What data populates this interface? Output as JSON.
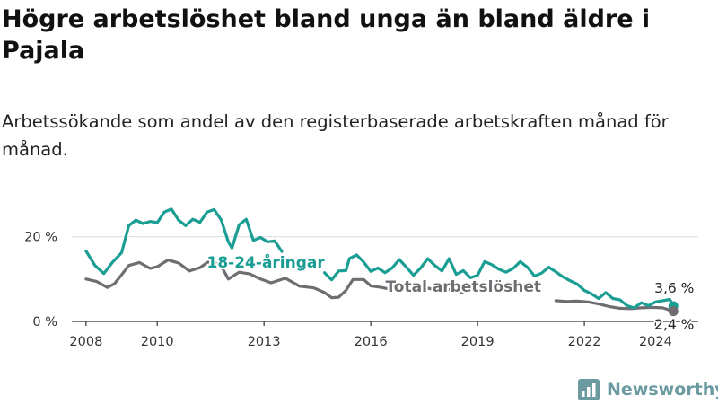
{
  "title": "Högre arbetslöshet bland unga än bland äldre i Pajala",
  "subtitle": "Arbetssökande som andel av den registerbaserade arbetskraften månad för månad.",
  "brand": {
    "name": "Newsworthy",
    "icon": "newsworthy-logo-icon",
    "color": "#6b9aa0"
  },
  "colors": {
    "youth": "#1a9e94",
    "total": "#706d72",
    "grid": "#e2e2e2",
    "axis": "#333333"
  },
  "chart_data": {
    "type": "line",
    "xlim": [
      2007.6,
      2025.2
    ],
    "ylim": [
      0,
      25
    ],
    "xticks": [
      {
        "value": 2008,
        "label": "2008"
      },
      {
        "value": 2010,
        "label": "2010"
      },
      {
        "value": 2013,
        "label": "2013"
      },
      {
        "value": 2016,
        "label": "2016"
      },
      {
        "value": 2019,
        "label": "2019"
      },
      {
        "value": 2022,
        "label": "2022"
      },
      {
        "value": 2024,
        "label": "2024"
      }
    ],
    "yticks": [
      {
        "value": 0,
        "label": "0 %"
      },
      {
        "value": 20,
        "label": "20 %"
      }
    ],
    "grid": true,
    "series": [
      {
        "name": "18-24-åringar",
        "color": "#1a9e94",
        "label_at": [
          2013.05,
          12.7
        ],
        "points": [
          [
            2008.0,
            16.6
          ],
          [
            2008.25,
            13.2
          ],
          [
            2008.5,
            11.3
          ],
          [
            2008.75,
            14.0
          ],
          [
            2009.0,
            16.2
          ],
          [
            2009.2,
            22.6
          ],
          [
            2009.4,
            23.9
          ],
          [
            2009.6,
            23.1
          ],
          [
            2009.8,
            23.6
          ],
          [
            2010.0,
            23.3
          ],
          [
            2010.2,
            25.8
          ],
          [
            2010.4,
            26.5
          ],
          [
            2010.6,
            23.9
          ],
          [
            2010.8,
            22.6
          ],
          [
            2011.0,
            24.1
          ],
          [
            2011.2,
            23.4
          ],
          [
            2011.4,
            25.8
          ],
          [
            2011.6,
            26.4
          ],
          [
            2011.8,
            23.9
          ],
          [
            2012.0,
            18.7
          ],
          [
            2012.1,
            17.3
          ],
          [
            2012.3,
            22.8
          ],
          [
            2012.5,
            24.1
          ],
          [
            2012.7,
            19.1
          ],
          [
            2012.9,
            19.8
          ],
          [
            2013.1,
            18.8
          ],
          [
            2013.3,
            19.0
          ],
          [
            2013.5,
            16.5
          ],
          null,
          [
            2014.7,
            11.5
          ],
          [
            2014.9,
            9.8
          ],
          [
            2015.1,
            11.9
          ],
          [
            2015.3,
            12.0
          ],
          [
            2015.4,
            14.8
          ],
          [
            2015.6,
            15.7
          ],
          [
            2015.8,
            14.0
          ],
          [
            2016.0,
            11.8
          ],
          [
            2016.2,
            12.6
          ],
          [
            2016.4,
            11.5
          ],
          [
            2016.6,
            12.6
          ],
          [
            2016.8,
            14.6
          ],
          [
            2017.0,
            12.8
          ],
          [
            2017.2,
            10.9
          ],
          [
            2017.4,
            12.6
          ],
          [
            2017.6,
            14.8
          ],
          [
            2017.8,
            13.2
          ],
          [
            2018.0,
            11.9
          ],
          [
            2018.2,
            14.8
          ],
          [
            2018.4,
            11.1
          ],
          [
            2018.6,
            12.0
          ],
          [
            2018.8,
            10.3
          ],
          [
            2019.0,
            10.9
          ],
          [
            2019.2,
            14.1
          ],
          [
            2019.4,
            13.4
          ],
          [
            2019.6,
            12.3
          ],
          [
            2019.8,
            11.6
          ],
          [
            2020.0,
            12.5
          ],
          [
            2020.2,
            14.1
          ],
          [
            2020.4,
            12.8
          ],
          [
            2020.6,
            10.7
          ],
          [
            2020.8,
            11.4
          ],
          [
            2021.0,
            12.8
          ],
          [
            2021.2,
            11.7
          ],
          [
            2021.4,
            10.5
          ],
          [
            2021.6,
            9.6
          ],
          [
            2021.8,
            8.8
          ],
          [
            2022.0,
            7.3
          ],
          [
            2022.2,
            6.5
          ],
          [
            2022.4,
            5.4
          ],
          [
            2022.6,
            6.8
          ],
          [
            2022.8,
            5.4
          ],
          [
            2023.0,
            5.1
          ],
          [
            2023.2,
            3.7
          ],
          [
            2023.4,
            3.2
          ],
          [
            2023.6,
            4.4
          ],
          [
            2023.8,
            3.7
          ],
          [
            2024.0,
            4.6
          ],
          [
            2024.2,
            4.9
          ],
          [
            2024.4,
            5.2
          ],
          [
            2024.5,
            3.6
          ]
        ]
      },
      {
        "name": "Total arbetslöshet",
        "color": "#706d72",
        "label_at": [
          2018.6,
          7.0
        ],
        "points": [
          [
            2008.0,
            10.0
          ],
          [
            2008.3,
            9.4
          ],
          [
            2008.6,
            8.0
          ],
          [
            2008.8,
            8.9
          ],
          [
            2009.0,
            11.0
          ],
          [
            2009.2,
            13.2
          ],
          [
            2009.5,
            13.9
          ],
          [
            2009.8,
            12.5
          ],
          [
            2010.0,
            12.9
          ],
          [
            2010.3,
            14.5
          ],
          [
            2010.6,
            13.8
          ],
          [
            2010.9,
            11.9
          ],
          [
            2011.2,
            12.7
          ],
          [
            2011.5,
            14.4
          ],
          [
            2011.8,
            13.0
          ],
          [
            2012.0,
            10.0
          ],
          [
            2012.3,
            11.6
          ],
          [
            2012.6,
            11.2
          ],
          [
            2012.9,
            10.0
          ],
          [
            2013.2,
            9.1
          ],
          [
            2013.6,
            10.2
          ],
          [
            2014.0,
            8.3
          ],
          [
            2014.4,
            7.9
          ],
          [
            2014.7,
            6.8
          ],
          [
            2014.9,
            5.6
          ],
          [
            2015.1,
            5.7
          ],
          [
            2015.3,
            7.3
          ],
          [
            2015.5,
            9.9
          ],
          [
            2015.8,
            9.9
          ],
          [
            2016.0,
            8.4
          ],
          [
            2016.3,
            8.0
          ],
          [
            2016.6,
            7.5
          ],
          [
            2016.9,
            8.3
          ],
          [
            2017.2,
            7.4
          ],
          [
            2017.5,
            8.1
          ],
          [
            2017.9,
            7.2
          ],
          [
            2018.2,
            7.5
          ],
          [
            2018.6,
            6.8
          ],
          null,
          [
            2021.2,
            4.9
          ],
          [
            2021.5,
            4.7
          ],
          [
            2021.8,
            4.8
          ],
          [
            2022.1,
            4.6
          ],
          [
            2022.4,
            4.1
          ],
          [
            2022.7,
            3.5
          ],
          [
            2023.0,
            3.1
          ],
          [
            2023.3,
            3.0
          ],
          [
            2023.6,
            3.2
          ],
          [
            2023.9,
            3.3
          ],
          [
            2024.2,
            3.2
          ],
          [
            2024.5,
            2.4
          ]
        ]
      }
    ],
    "end_labels": [
      {
        "series": 0,
        "text": "3,6 %",
        "value": 3.6
      },
      {
        "series": 1,
        "text": "2,4 %",
        "value": 2.4
      }
    ]
  }
}
